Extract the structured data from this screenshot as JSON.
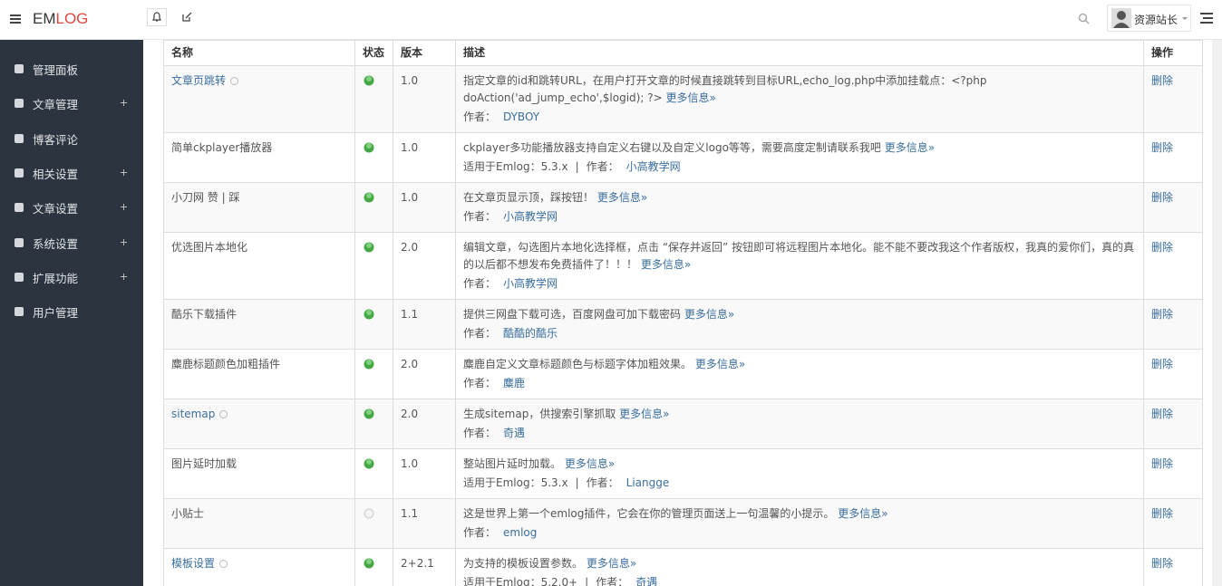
{
  "header": {
    "brand_a": "EM",
    "brand_b": "LOG",
    "user": "资源站长"
  },
  "sidebar": [
    {
      "label": "管理面板",
      "expandable": false
    },
    {
      "label": "文章管理",
      "expandable": true
    },
    {
      "label": "博客评论",
      "expandable": false
    },
    {
      "label": "相关设置",
      "expandable": true
    },
    {
      "label": "文章设置",
      "expandable": true
    },
    {
      "label": "系统设置",
      "expandable": true
    },
    {
      "label": "扩展功能",
      "expandable": true
    },
    {
      "label": "用户管理",
      "expandable": false
    }
  ],
  "table": {
    "columns": [
      "名称",
      "状态",
      "版本",
      "描述",
      "操作"
    ],
    "more_label": "更多信息»",
    "author_label": "作者：",
    "compat_separator": "|",
    "action_label": "删除",
    "rows": [
      {
        "name": "文章页跳转",
        "has_settings": true,
        "active": true,
        "version": "1.0",
        "description": "指定文章的id和跳转URL，在用户打开文章的时候直接跳转到目标URL,echo_log.php中添加挂载点：<?php doAction('ad_jump_echo',$logid); ?>",
        "author": "DYBOY"
      },
      {
        "name": "简单ckplayer播放器",
        "has_settings": false,
        "active": true,
        "version": "1.0",
        "description": "ckplayer多功能播放器支持自定义右键以及自定义logo等等，需要高度定制请联系我吧",
        "compat": "适用于Emlog：5.3.x",
        "author": "小高教学网"
      },
      {
        "name": "小刀网 赞 | 踩",
        "has_settings": false,
        "active": true,
        "version": "1.0",
        "description": "在文章页显示顶，踩按钮！",
        "author": "小高教学网"
      },
      {
        "name": "优选图片本地化",
        "has_settings": false,
        "active": true,
        "version": "2.0",
        "description": "编辑文章，勾选图片本地化选择框，点击 “保存并返回” 按钮即可将远程图片本地化。能不能不要改我这个作者版权，我真的爱你们，真的真的以后都不想发布免费插件了！！！",
        "author": "小高教学网"
      },
      {
        "name": "酷乐下载插件",
        "has_settings": false,
        "active": true,
        "version": "1.1",
        "description": "提供三网盘下载可选，百度网盘可加下载密码",
        "author": "酷酷的酷乐"
      },
      {
        "name": "麋鹿标题颜色加粗插件",
        "has_settings": false,
        "active": true,
        "version": "2.0",
        "description": "麋鹿自定义文章标题颜色与标题字体加粗效果。",
        "author": "麋鹿"
      },
      {
        "name": "sitemap",
        "has_settings": true,
        "active": true,
        "version": "2.0",
        "description": "生成sitemap，供搜索引擎抓取",
        "author": "奇遇"
      },
      {
        "name": "图片延时加载",
        "has_settings": false,
        "active": true,
        "version": "1.0",
        "description": "整站图片延时加载。",
        "compat": "适用于Emlog：5.3.x",
        "author": "Liangge"
      },
      {
        "name": "小贴士",
        "has_settings": false,
        "active": false,
        "version": "1.1",
        "description": "这是世界上第一个emlog插件，它会在你的管理页面送上一句温馨的小提示。",
        "author": "emlog"
      },
      {
        "name": "模板设置",
        "has_settings": true,
        "active": true,
        "version": "2+2.1",
        "description": "为支持的模板设置参数。",
        "compat": "适用于Emlog：5.2.0+",
        "author": "奇遇"
      }
    ]
  }
}
